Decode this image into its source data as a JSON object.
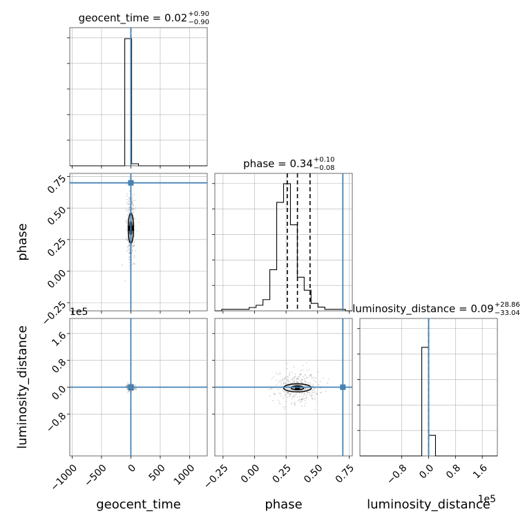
{
  "chart_data": {
    "type": "corner",
    "parameters": [
      "geocent_time",
      "phase",
      "luminosity_distance"
    ],
    "titles": [
      {
        "param": "geocent_time",
        "median": "0.02",
        "plus": "+0.90",
        "minus": "−0.90"
      },
      {
        "param": "phase",
        "median": "0.34",
        "plus": "+0.10",
        "minus": "−0.08"
      },
      {
        "param": "luminosity_distance",
        "median": "0.09",
        "plus": "+28.86",
        "minus": "−33.04"
      }
    ],
    "axis_labels": [
      "geocent_time",
      "phase",
      "luminosity_distance"
    ],
    "ranges": {
      "geocent_time": [
        -1040,
        1300
      ],
      "phase": [
        -0.315,
        0.775
      ],
      "luminosity_distance": [
        -205000,
        205000
      ]
    },
    "ticks": {
      "geocent_time": {
        "values": [
          -1000,
          -500,
          0,
          500,
          1000
        ],
        "labels": [
          "−1000",
          "−500",
          "0",
          "500",
          "1000"
        ]
      },
      "phase": {
        "values": [
          -0.25,
          0.0,
          0.25,
          0.5,
          0.75
        ],
        "labels": [
          "−0.25",
          "0.00",
          "0.25",
          "0.50",
          "0.75"
        ]
      },
      "luminosity_distance": {
        "values": [
          -80000,
          0,
          80000,
          160000
        ],
        "labels": [
          "−0.8",
          "0.0",
          "0.8",
          "1.6"
        ]
      }
    },
    "offset_text": {
      "luminosity_distance": "1e5"
    },
    "truths": {
      "geocent_time": 0,
      "phase": 0.7,
      "luminosity_distance": 0
    },
    "quantiles": {
      "phase": [
        0.26,
        0.34,
        0.44
      ],
      "geocent_time": [
        0.02
      ],
      "luminosity_distance": [
        0.09
      ]
    },
    "histograms": {
      "geocent_time": {
        "edges": [
          -1040,
          -923,
          -806,
          -689,
          -572,
          -455,
          -338,
          -221,
          -104,
          13,
          130,
          247,
          364,
          481,
          598,
          715,
          832,
          949,
          1066,
          1183,
          1300
        ],
        "counts": [
          0,
          0,
          0,
          0,
          0,
          0,
          0,
          0,
          0.92,
          0.015,
          0,
          0,
          0,
          0,
          0,
          0,
          0,
          0,
          0,
          0
        ],
        "ylim": [
          0,
          1.0
        ]
      },
      "phase": {
        "edges": [
          -0.315,
          -0.2605,
          -0.206,
          -0.1515,
          -0.097,
          -0.0425,
          0.012,
          0.0665,
          0.121,
          0.1755,
          0.23,
          0.2845,
          0.339,
          0.3935,
          0.448,
          0.5025,
          0.557,
          0.6115,
          0.666,
          0.7205,
          0.775
        ],
        "counts": [
          0,
          0.008,
          0.008,
          0.008,
          0.008,
          0.018,
          0.03,
          0.06,
          0.22,
          0.58,
          0.68,
          0.46,
          0.18,
          0.11,
          0.04,
          0.02,
          0.008,
          0.008,
          0.008,
          0
        ],
        "ylim": [
          0,
          0.735
        ]
      },
      "luminosity_distance": {
        "edges": [
          -205000,
          -184500,
          -164000,
          -143500,
          -123000,
          -102500,
          -82000,
          -61500,
          -41000,
          -20500,
          0,
          20500,
          41000,
          61500,
          82000,
          102500,
          123000,
          143500,
          164000,
          184500,
          205000
        ],
        "counts": [
          0,
          0,
          0,
          0,
          0,
          0,
          0,
          0,
          0,
          0.79,
          0.15,
          0,
          0,
          0,
          0,
          0,
          0,
          0,
          0,
          0
        ],
        "ylim": [
          0,
          1.0
        ]
      }
    },
    "contours_2d": {
      "phase_vs_geocent_time": {
        "center": [
          0,
          0.34
        ],
        "levels": [
          {
            "rx": 18,
            "ry": 0.055
          },
          {
            "rx": 45,
            "ry": 0.12
          }
        ]
      },
      "luminosity_distance_vs_geocent_time": {
        "center": [
          0,
          -2000
        ],
        "levels": [
          {
            "rx": 25,
            "ry": 2000
          }
        ]
      },
      "luminosity_distance_vs_phase": {
        "center": [
          0.34,
          -2000
        ],
        "levels": [
          {
            "rx": 0.05,
            "ry": 6000
          },
          {
            "rx": 0.11,
            "ry": 12000
          }
        ]
      }
    },
    "grid": true,
    "colors": {
      "truth": "#4682b4",
      "hist": "#000000",
      "grid": "#b0b0b0",
      "scatter": "#7f7f7f"
    }
  }
}
